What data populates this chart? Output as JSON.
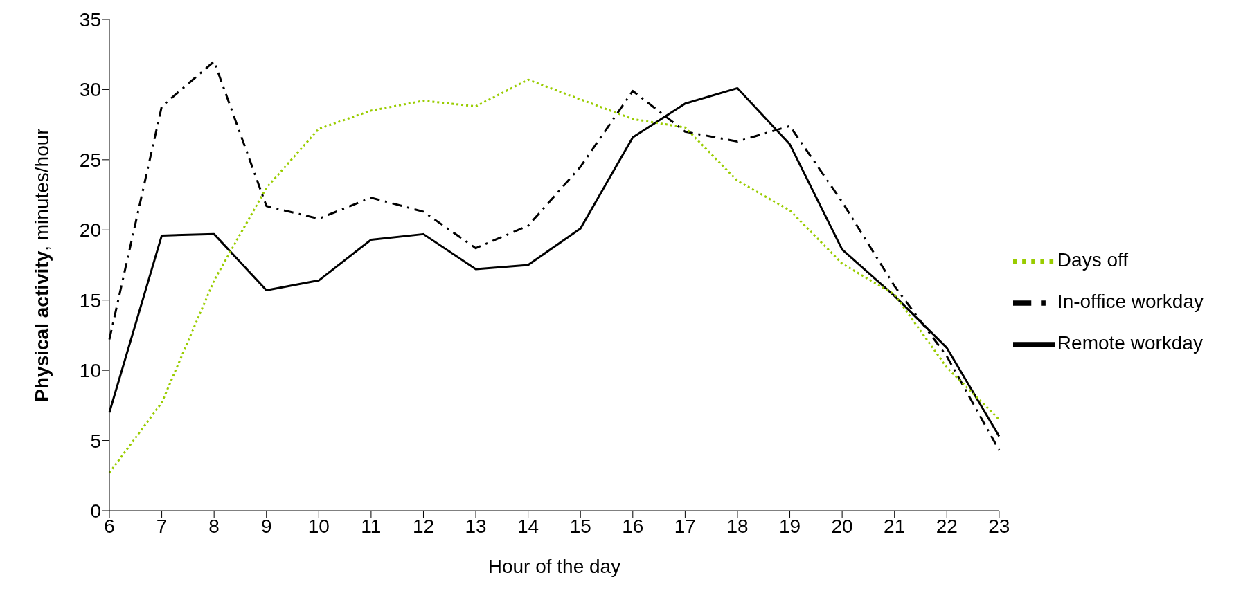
{
  "chart_data": {
    "type": "line",
    "xlabel": "Hour of the day",
    "ylabel": "Physical activity, minutes/hour",
    "categories": [
      "6",
      "7",
      "8",
      "9",
      "10",
      "11",
      "12",
      "13",
      "14",
      "15",
      "16",
      "17",
      "18",
      "19",
      "20",
      "21",
      "22",
      "23"
    ],
    "series": [
      {
        "name": "In-office workday",
        "color": "#000000",
        "line_style": "dashed",
        "values": [
          12.2,
          28.8,
          32.0,
          21.7,
          20.8,
          22.3,
          21.3,
          18.7,
          20.3,
          24.5,
          29.9,
          27.0,
          26.3,
          27.4,
          22.0,
          16.0,
          11.0,
          4.3
        ]
      },
      {
        "name": "Remote workday",
        "color": "#000000",
        "line_style": "solid",
        "values": [
          7.0,
          19.6,
          19.7,
          15.7,
          16.4,
          19.3,
          19.7,
          17.2,
          17.5,
          20.1,
          26.6,
          29.0,
          30.1,
          26.1,
          18.6,
          15.3,
          11.6,
          5.3
        ]
      },
      {
        "name": "Days off",
        "color": "#99cc00",
        "line_style": "dotted",
        "values": [
          2.7,
          7.7,
          16.4,
          23.0,
          27.2,
          28.5,
          29.2,
          28.8,
          30.7,
          29.3,
          27.9,
          27.3,
          23.5,
          21.4,
          17.6,
          15.4,
          10.2,
          6.5
        ]
      }
    ],
    "ylim": [
      0,
      35
    ],
    "yticks": [
      0,
      5,
      10,
      15,
      20,
      25,
      30,
      35
    ],
    "grid": false,
    "legend": "right",
    "marker": "none"
  }
}
